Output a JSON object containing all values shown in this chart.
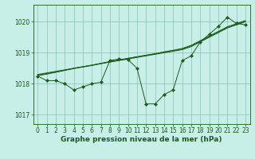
{
  "title": "Graphe pression niveau de la mer (hPa)",
  "background_color": "#c8eee8",
  "grid_color": "#7ab5a8",
  "line_color": "#1a5c1a",
  "xlim": [
    -0.5,
    23.5
  ],
  "ylim": [
    1016.7,
    1020.55
  ],
  "yticks": [
    1017,
    1018,
    1019,
    1020
  ],
  "xticks": [
    0,
    1,
    2,
    3,
    4,
    5,
    6,
    7,
    8,
    9,
    10,
    11,
    12,
    13,
    14,
    15,
    16,
    17,
    18,
    19,
    20,
    21,
    22,
    23
  ],
  "series_straight": [
    [
      1018.3,
      1018.35,
      1018.4,
      1018.45,
      1018.5,
      1018.55,
      1018.6,
      1018.65,
      1018.7,
      1018.75,
      1018.8,
      1018.85,
      1018.9,
      1018.95,
      1019.0,
      1019.05,
      1019.1,
      1019.2,
      1019.35,
      1019.5,
      1019.65,
      1019.8,
      1019.9,
      1020.0
    ],
    [
      1018.28,
      1018.33,
      1018.38,
      1018.44,
      1018.5,
      1018.55,
      1018.6,
      1018.66,
      1018.72,
      1018.77,
      1018.82,
      1018.87,
      1018.92,
      1018.97,
      1019.02,
      1019.07,
      1019.12,
      1019.22,
      1019.37,
      1019.52,
      1019.67,
      1019.82,
      1019.92,
      1020.02
    ],
    [
      1018.26,
      1018.31,
      1018.37,
      1018.43,
      1018.49,
      1018.54,
      1018.59,
      1018.65,
      1018.71,
      1018.76,
      1018.82,
      1018.87,
      1018.92,
      1018.97,
      1019.03,
      1019.08,
      1019.14,
      1019.24,
      1019.39,
      1019.54,
      1019.69,
      1019.84,
      1019.94,
      1020.04
    ]
  ],
  "series_wiggly": [
    1018.25,
    1018.1,
    1018.1,
    1018.0,
    1017.8,
    1017.9,
    1018.0,
    1018.05,
    1018.75,
    1018.8,
    1018.78,
    1018.5,
    1017.35,
    1017.35,
    1017.65,
    1017.8,
    1018.75,
    1018.9,
    1019.35,
    1019.6,
    1019.85,
    1020.15,
    1019.95,
    1019.9
  ],
  "fontsize_label": 6.5,
  "fontsize_tick": 5.5
}
